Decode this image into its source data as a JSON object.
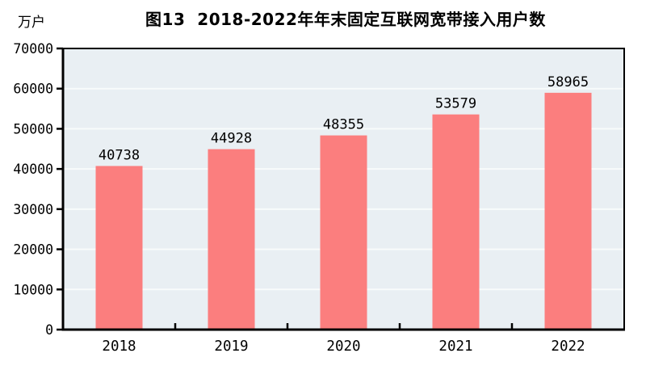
{
  "title": "图13  2018-2022年年末固定互联网宽带接入用户数",
  "unit_label": "万户",
  "chart_data": {
    "type": "bar",
    "title": "图13  2018-2022年年末固定互联网宽带接入用户数",
    "categories": [
      "2018",
      "2019",
      "2020",
      "2021",
      "2022"
    ],
    "values": [
      40738,
      44928,
      48355,
      53579,
      58965
    ],
    "value_labels": [
      "40738",
      "44928",
      "48355",
      "53579",
      "58965"
    ],
    "xlabel": "",
    "ylabel": "万户",
    "ylim": [
      0,
      70000
    ],
    "yticks": [
      0,
      10000,
      20000,
      30000,
      40000,
      50000,
      60000,
      70000
    ],
    "grid": true,
    "legend_position": "none",
    "colors": {
      "bar": "#fb7e7e",
      "plot_background": "#e9eff3",
      "gridline": "#f8fbfb",
      "axis": "#000000",
      "text": "#000000",
      "page_background": "#ffffff"
    }
  }
}
